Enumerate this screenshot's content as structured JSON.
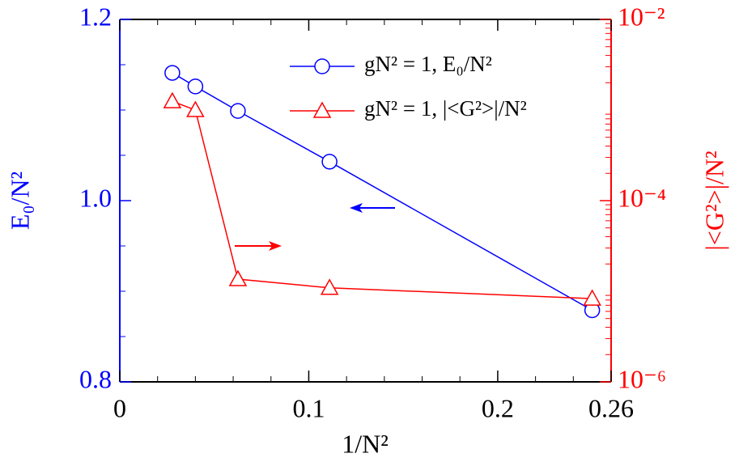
{
  "chart_data": {
    "type": "line",
    "x_label": "1/N²",
    "y_label": "E₀/N²",
    "y2_label": "|<G²>|/N²",
    "x": [
      0.0278,
      0.04,
      0.0625,
      0.111,
      0.25
    ],
    "series": [
      {
        "name": "gN² = 1,  E₀/N²",
        "color": "#0000ff",
        "marker": "circle",
        "values": [
          1.141,
          1.126,
          1.099,
          1.043,
          0.879
        ]
      },
      {
        "name": "gN² = 1, |<G²>|/N²",
        "color": "#ff0000",
        "marker": "triangle",
        "axis": "y2",
        "values": [
          0.00125,
          0.001,
          1.36e-05,
          1.09e-05,
          8.3e-06
        ]
      }
    ],
    "xlim": [
      0,
      0.26
    ],
    "xticks": [
      0,
      0.1,
      0.2,
      0.26
    ],
    "ylim": [
      0.8,
      1.2
    ],
    "yticks": [
      0.8,
      {
        "value": 1.0,
        "label": "1.0"
      },
      1.2
    ],
    "y2lim": [
      1e-06,
      0.01
    ],
    "y2scale": "log",
    "y2ticks": [
      {
        "value": 1e-06,
        "label": "10⁻⁶"
      },
      {
        "value": 0.0001,
        "label": "10⁻⁴"
      },
      {
        "value": 0.01,
        "label": "10⁻²"
      }
    ],
    "legend": "upper right"
  }
}
